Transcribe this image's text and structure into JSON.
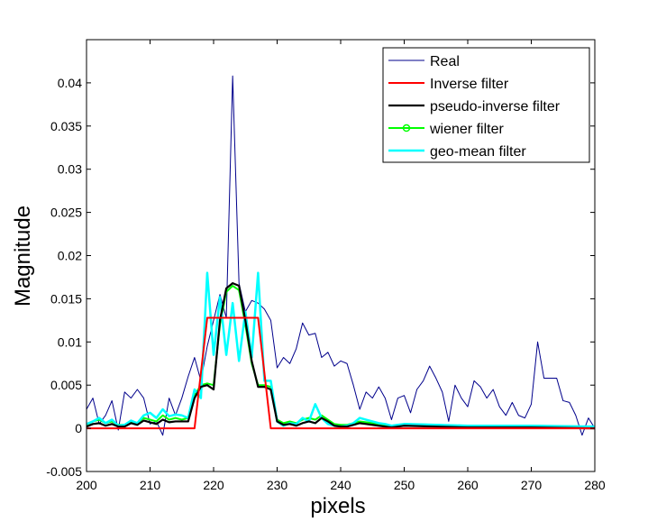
{
  "chart_data": {
    "type": "line",
    "title": "",
    "xlabel": "pixels",
    "ylabel": "Magnitude",
    "xlim": [
      200,
      280
    ],
    "ylim": [
      -0.005,
      0.045
    ],
    "xticks": [
      "200",
      "210",
      "220",
      "230",
      "240",
      "250",
      "260",
      "270",
      "280"
    ],
    "yticks": [
      "-0.005",
      "0",
      "0.005",
      "0.01",
      "0.015",
      "0.02",
      "0.025",
      "0.03",
      "0.035",
      "0.04"
    ],
    "grid": false,
    "legend_position": "top-right",
    "series": [
      {
        "name": "Real",
        "color": "#00008b",
        "points": [
          [
            200,
            0.0022
          ],
          [
            201,
            0.0035
          ],
          [
            202,
            0.0005
          ],
          [
            203,
            0.0015
          ],
          [
            204,
            0.0032
          ],
          [
            205,
            -0.0002
          ],
          [
            206,
            0.0042
          ],
          [
            207,
            0.0035
          ],
          [
            208,
            0.0045
          ],
          [
            209,
            0.0035
          ],
          [
            210,
            0.0005
          ],
          [
            211,
            0.0008
          ],
          [
            212,
            -0.0008
          ],
          [
            213,
            0.0035
          ],
          [
            214,
            0.0015
          ],
          [
            215,
            0.0035
          ],
          [
            216,
            0.006
          ],
          [
            217,
            0.0082
          ],
          [
            218,
            0.0055
          ],
          [
            219,
            0.0095
          ],
          [
            220,
            0.0125
          ],
          [
            221,
            0.0155
          ],
          [
            222,
            0.0128
          ],
          [
            223,
            0.0408
          ],
          [
            224,
            0.0168
          ],
          [
            225,
            0.0135
          ],
          [
            226,
            0.0148
          ],
          [
            227,
            0.0145
          ],
          [
            228,
            0.0138
          ],
          [
            229,
            0.0125
          ],
          [
            230,
            0.007
          ],
          [
            231,
            0.0082
          ],
          [
            232,
            0.0075
          ],
          [
            233,
            0.0092
          ],
          [
            234,
            0.0122
          ],
          [
            235,
            0.0108
          ],
          [
            236,
            0.011
          ],
          [
            237,
            0.0082
          ],
          [
            238,
            0.0088
          ],
          [
            239,
            0.0072
          ],
          [
            240,
            0.0078
          ],
          [
            241,
            0.0075
          ],
          [
            242,
            0.005
          ],
          [
            243,
            0.0022
          ],
          [
            244,
            0.0042
          ],
          [
            245,
            0.0035
          ],
          [
            246,
            0.0048
          ],
          [
            247,
            0.0035
          ],
          [
            248,
            0.001
          ],
          [
            249,
            0.0035
          ],
          [
            250,
            0.0038
          ],
          [
            251,
            0.0018
          ],
          [
            252,
            0.0045
          ],
          [
            253,
            0.0055
          ],
          [
            254,
            0.0072
          ],
          [
            255,
            0.0058
          ],
          [
            256,
            0.0042
          ],
          [
            257,
            0.0008
          ],
          [
            258,
            0.005
          ],
          [
            259,
            0.0035
          ],
          [
            260,
            0.0025
          ],
          [
            261,
            0.0055
          ],
          [
            262,
            0.0048
          ],
          [
            263,
            0.0035
          ],
          [
            264,
            0.0045
          ],
          [
            265,
            0.0025
          ],
          [
            266,
            0.0015
          ],
          [
            267,
            0.003
          ],
          [
            268,
            0.0015
          ],
          [
            269,
            0.0012
          ],
          [
            270,
            0.0028
          ],
          [
            271,
            0.01
          ],
          [
            272,
            0.0058
          ],
          [
            273,
            0.0058
          ],
          [
            274,
            0.0058
          ],
          [
            275,
            0.0032
          ],
          [
            276,
            0.003
          ],
          [
            277,
            0.0015
          ],
          [
            278,
            -0.0008
          ],
          [
            279,
            0.0012
          ],
          [
            280,
            0.0
          ]
        ]
      },
      {
        "name": "Inverse filter",
        "color": "#ff0000",
        "points": [
          [
            200,
            0
          ],
          [
            217,
            0
          ],
          [
            219,
            0.0128
          ],
          [
            227,
            0.0128
          ],
          [
            229,
            0
          ],
          [
            280,
            0
          ]
        ]
      },
      {
        "name": "pseudo-inverse filter",
        "color": "#000000",
        "points": [
          [
            200,
            0.0002
          ],
          [
            201,
            0.0005
          ],
          [
            202,
            0.0006
          ],
          [
            203,
            0.0003
          ],
          [
            204,
            0.0005
          ],
          [
            205,
            0.0002
          ],
          [
            206,
            0.0002
          ],
          [
            207,
            0.0006
          ],
          [
            208,
            0.0004
          ],
          [
            209,
            0.0009
          ],
          [
            210,
            0.0007
          ],
          [
            211,
            0.0005
          ],
          [
            212,
            0.001
          ],
          [
            213,
            0.0007
          ],
          [
            214,
            0.0008
          ],
          [
            215,
            0.0008
          ],
          [
            216,
            0.0008
          ],
          [
            217,
            0.0035
          ],
          [
            218,
            0.0048
          ],
          [
            219,
            0.005
          ],
          [
            220,
            0.0045
          ],
          [
            221,
            0.0125
          ],
          [
            222,
            0.0162
          ],
          [
            223,
            0.0168
          ],
          [
            224,
            0.0165
          ],
          [
            225,
            0.0125
          ],
          [
            226,
            0.0078
          ],
          [
            227,
            0.0048
          ],
          [
            228,
            0.0048
          ],
          [
            229,
            0.0045
          ],
          [
            230,
            0.0008
          ],
          [
            231,
            0.0004
          ],
          [
            232,
            0.0005
          ],
          [
            233,
            0.0003
          ],
          [
            234,
            0.0006
          ],
          [
            235,
            0.0008
          ],
          [
            236,
            0.0006
          ],
          [
            237,
            0.0012
          ],
          [
            238,
            0.0008
          ],
          [
            239,
            0.0003
          ],
          [
            240,
            0.0002
          ],
          [
            241,
            0.0002
          ],
          [
            242,
            0.0004
          ],
          [
            243,
            0.0006
          ],
          [
            244,
            0.0005
          ],
          [
            245,
            0.0004
          ],
          [
            246,
            0.0003
          ],
          [
            247,
            0.0002
          ],
          [
            248,
            0.0001
          ],
          [
            249,
            0.0002
          ],
          [
            250,
            0.0003
          ],
          [
            255,
            0.0002
          ],
          [
            260,
            0.0001
          ],
          [
            270,
            0.0001
          ],
          [
            280,
            0.0
          ]
        ]
      },
      {
        "name": "wiener filter",
        "color": "#00ff00",
        "points": [
          [
            200,
            0.0004
          ],
          [
            201,
            0.0008
          ],
          [
            202,
            0.001
          ],
          [
            203,
            0.0006
          ],
          [
            204,
            0.0008
          ],
          [
            205,
            0.0004
          ],
          [
            206,
            0.0004
          ],
          [
            207,
            0.0008
          ],
          [
            208,
            0.0006
          ],
          [
            209,
            0.0012
          ],
          [
            210,
            0.001
          ],
          [
            211,
            0.0008
          ],
          [
            212,
            0.0015
          ],
          [
            213,
            0.001
          ],
          [
            214,
            0.0012
          ],
          [
            215,
            0.001
          ],
          [
            216,
            0.0012
          ],
          [
            217,
            0.0038
          ],
          [
            218,
            0.005
          ],
          [
            219,
            0.0052
          ],
          [
            220,
            0.005
          ],
          [
            221,
            0.012
          ],
          [
            222,
            0.0158
          ],
          [
            223,
            0.0165
          ],
          [
            224,
            0.016
          ],
          [
            225,
            0.012
          ],
          [
            226,
            0.0075
          ],
          [
            227,
            0.005
          ],
          [
            228,
            0.005
          ],
          [
            229,
            0.0048
          ],
          [
            230,
            0.001
          ],
          [
            231,
            0.0006
          ],
          [
            232,
            0.0008
          ],
          [
            233,
            0.0006
          ],
          [
            234,
            0.001
          ],
          [
            235,
            0.0012
          ],
          [
            236,
            0.001
          ],
          [
            237,
            0.0015
          ],
          [
            238,
            0.001
          ],
          [
            239,
            0.0005
          ],
          [
            240,
            0.0004
          ],
          [
            241,
            0.0004
          ],
          [
            242,
            0.0006
          ],
          [
            243,
            0.0008
          ],
          [
            244,
            0.0007
          ],
          [
            245,
            0.0006
          ],
          [
            246,
            0.0005
          ],
          [
            247,
            0.0004
          ],
          [
            248,
            0.0003
          ],
          [
            249,
            0.0004
          ],
          [
            250,
            0.0005
          ],
          [
            255,
            0.0004
          ],
          [
            260,
            0.0003
          ],
          [
            270,
            0.0003
          ],
          [
            280,
            0.0002
          ]
        ]
      },
      {
        "name": "geo-mean filter",
        "color": "#00ffff",
        "points": [
          [
            200,
            0.0005
          ],
          [
            201,
            0.0008
          ],
          [
            202,
            0.0012
          ],
          [
            203,
            0.0006
          ],
          [
            204,
            0.001
          ],
          [
            205,
            0.0003
          ],
          [
            206,
            0.0004
          ],
          [
            207,
            0.0009
          ],
          [
            208,
            0.0006
          ],
          [
            209,
            0.0015
          ],
          [
            210,
            0.0018
          ],
          [
            211,
            0.0012
          ],
          [
            212,
            0.0022
          ],
          [
            213,
            0.0014
          ],
          [
            214,
            0.0016
          ],
          [
            215,
            0.0015
          ],
          [
            216,
            0.0012
          ],
          [
            217,
            0.0045
          ],
          [
            218,
            0.0035
          ],
          [
            219,
            0.018
          ],
          [
            220,
            0.0085
          ],
          [
            221,
            0.0152
          ],
          [
            222,
            0.0085
          ],
          [
            223,
            0.0145
          ],
          [
            224,
            0.0078
          ],
          [
            225,
            0.0135
          ],
          [
            226,
            0.0082
          ],
          [
            227,
            0.018
          ],
          [
            228,
            0.0055
          ],
          [
            229,
            0.0055
          ],
          [
            230,
            0.0008
          ],
          [
            231,
            0.0003
          ],
          [
            232,
            0.0006
          ],
          [
            233,
            0.0005
          ],
          [
            234,
            0.0012
          ],
          [
            235,
            0.0008
          ],
          [
            236,
            0.0028
          ],
          [
            237,
            0.0012
          ],
          [
            238,
            0.0005
          ],
          [
            239,
            0.0003
          ],
          [
            240,
            0.0002
          ],
          [
            241,
            0.0003
          ],
          [
            242,
            0.0006
          ],
          [
            243,
            0.0012
          ],
          [
            244,
            0.001
          ],
          [
            245,
            0.0008
          ],
          [
            246,
            0.0006
          ],
          [
            247,
            0.0005
          ],
          [
            248,
            0.0003
          ],
          [
            249,
            0.0004
          ],
          [
            250,
            0.0005
          ],
          [
            255,
            0.0004
          ],
          [
            260,
            0.0003
          ],
          [
            270,
            0.0003
          ],
          [
            280,
            0.0002
          ]
        ]
      }
    ]
  }
}
